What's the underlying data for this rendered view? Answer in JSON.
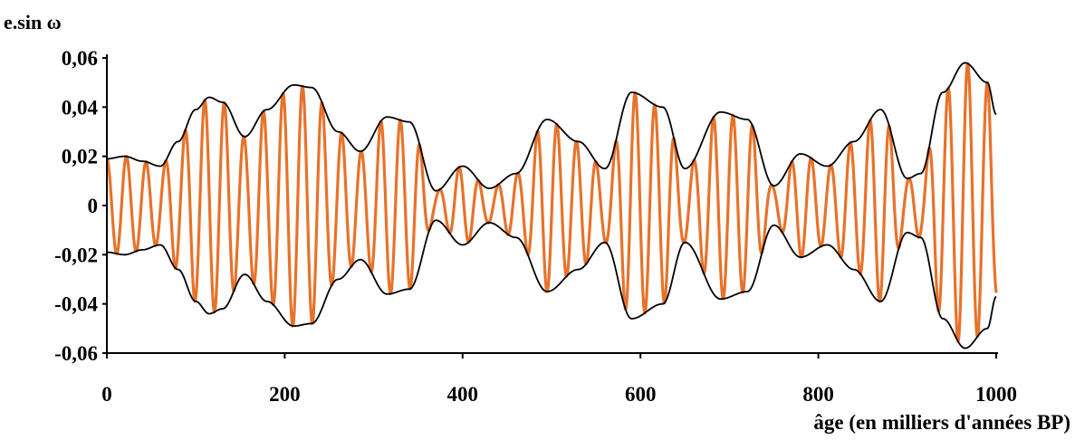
{
  "chart_data": {
    "type": "line",
    "ylabel": "e.sin ω",
    "xlabel": "âge (en milliers d'années BP)",
    "xlim": [
      0,
      1000
    ],
    "ylim": [
      -0.06,
      0.06
    ],
    "x_ticks": [
      0,
      200,
      400,
      600,
      800,
      1000
    ],
    "x_tick_labels": [
      "0",
      "200",
      "400",
      "600",
      "800",
      "1000"
    ],
    "y_ticks": [
      0.06,
      0.04,
      0.02,
      0,
      -0.02,
      -0.04,
      -0.06
    ],
    "y_tick_labels": [
      "0,06",
      "0,04",
      "0,02",
      "0",
      "-0,02",
      "-0,04",
      "-0,06"
    ],
    "grid": false,
    "colors": {
      "oscillation": "#e8722a",
      "envelope": "#000000",
      "axes": "#000000"
    },
    "envelope": {
      "x": [
        0,
        20,
        40,
        60,
        80,
        100,
        115,
        130,
        155,
        180,
        210,
        230,
        260,
        285,
        315,
        340,
        370,
        400,
        430,
        460,
        495,
        530,
        560,
        590,
        625,
        650,
        690,
        720,
        750,
        780,
        810,
        840,
        870,
        900,
        915,
        940,
        965,
        990,
        1000
      ],
      "upper": [
        0.019,
        0.02,
        0.018,
        0.016,
        0.026,
        0.039,
        0.044,
        0.042,
        0.028,
        0.039,
        0.049,
        0.048,
        0.03,
        0.022,
        0.036,
        0.034,
        0.006,
        0.016,
        0.007,
        0.013,
        0.035,
        0.026,
        0.015,
        0.046,
        0.04,
        0.015,
        0.038,
        0.035,
        0.008,
        0.021,
        0.016,
        0.026,
        0.039,
        0.011,
        0.013,
        0.046,
        0.058,
        0.05,
        0.037
      ]
    },
    "oscillation_period": 22
  }
}
